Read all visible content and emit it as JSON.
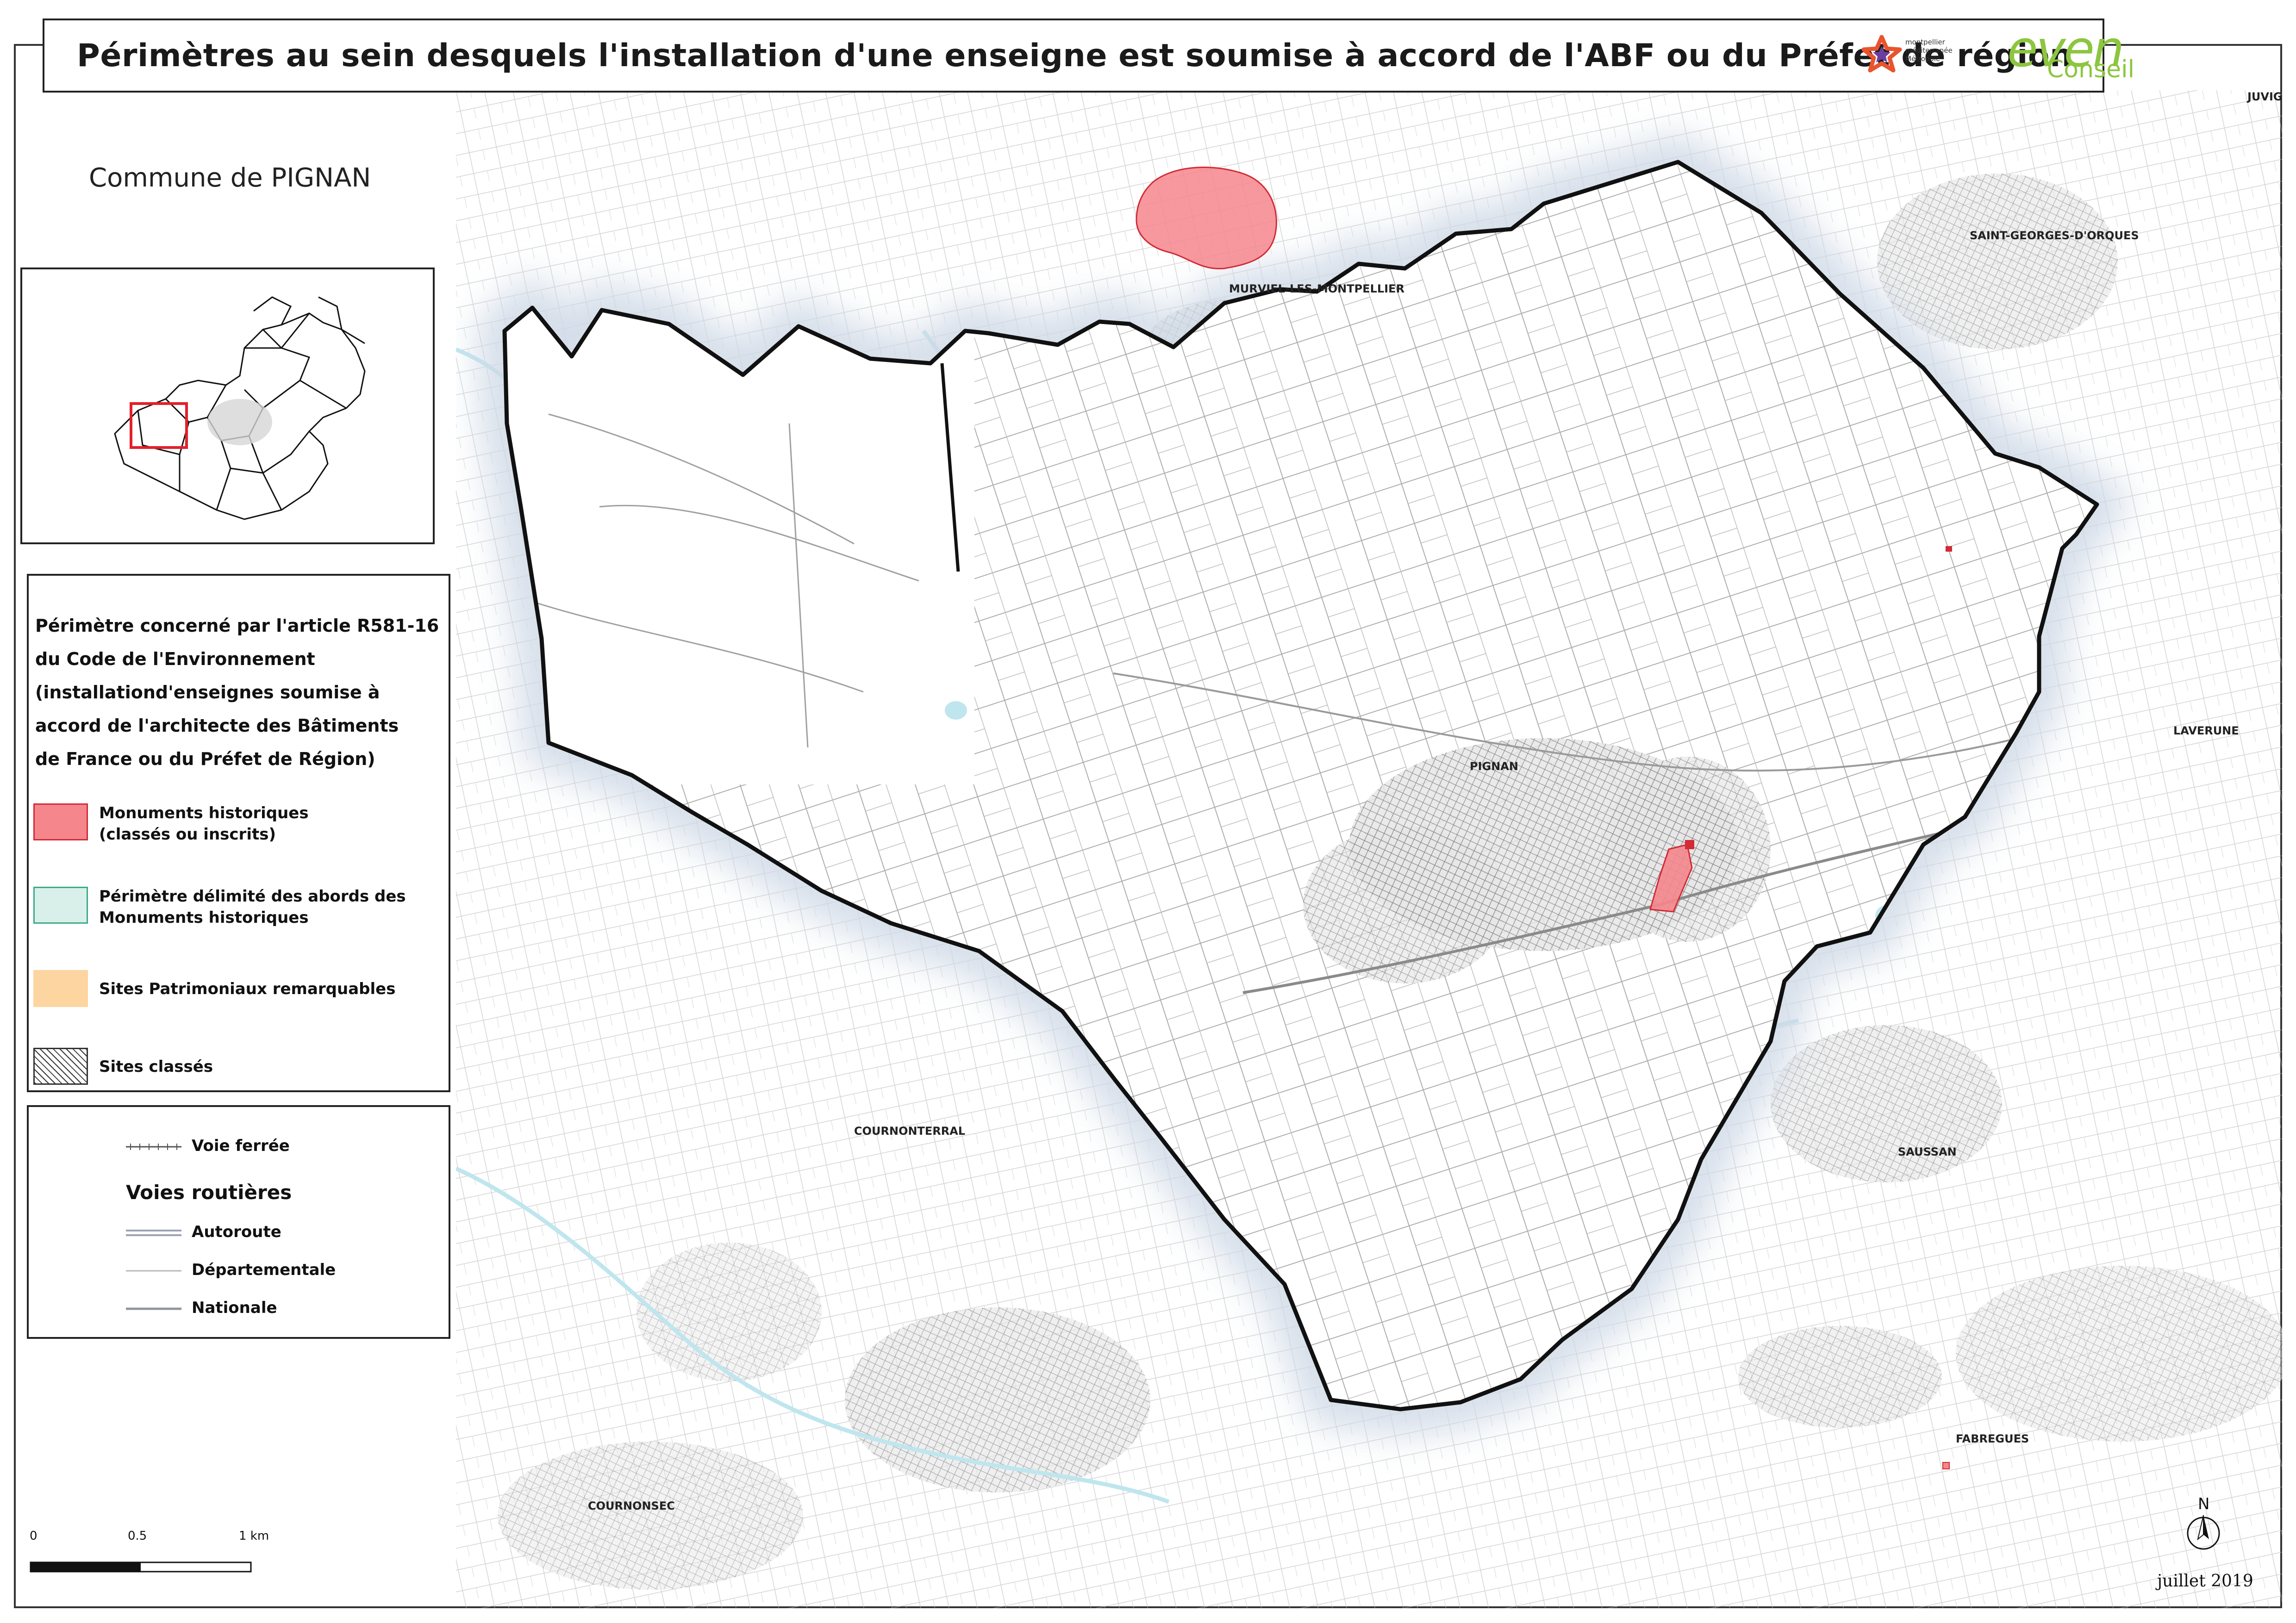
{
  "title": "Périmètres au sein desquels l'installation d'une enseigne est soumise à accord de l'ABF ou du Préfet de région",
  "logos": {
    "montpellier_line1": "montpellier",
    "montpellier_line2": "méditerranée",
    "montpellier_line3": "Métropole",
    "even_word": "even",
    "even_sub": "Conseil"
  },
  "commune_label": "Commune de PIGNAN",
  "legend": {
    "heading_lines": [
      "Périmètre concerné par l'article R581-16",
      "du Code de l'Environnement",
      "(installationd'enseignes soumise à",
      "accord de l'architecte des Bâtiments",
      "de France ou du Préfet de Région)"
    ],
    "items": [
      {
        "line1": "Monuments historiques",
        "line2": "(classés ou inscrits)",
        "color": "#f4868c",
        "border": "#d22b36"
      },
      {
        "line1": "Périmètre délimité des abords des",
        "line2": "Monuments historiques",
        "color": "#d9f0ea",
        "border": "#3daa86"
      },
      {
        "line1": "Sites Patrimoniaux remarquables",
        "line2": "",
        "color": "#fdd5a0",
        "border": "#fdd5a0"
      },
      {
        "line1": "Sites classés",
        "line2": "",
        "color": "hatched",
        "border": "#333333"
      }
    ]
  },
  "legend2": {
    "railway": "Voie ferrée",
    "roads_heading": "Voies routières",
    "autoroute": "Autoroute",
    "departementale": "Départementale",
    "nationale": "Nationale"
  },
  "places": {
    "murviel": "MURVIEL-LES-MONTPELLIER",
    "saint_georges": "SAINT-GEORGES-D'ORQUES",
    "juvignac": "JUVIG",
    "pignan": "PIGNAN",
    "laverune": "LAVERUNE",
    "cournonterral": "COURNONTERRAL",
    "saussan": "SAUSSAN",
    "fabregues": "FABREGUES",
    "cournonsec": "COURNONSEC"
  },
  "scale": {
    "tick0": "0",
    "tick1": "0.5",
    "tick2": "1 km"
  },
  "north_label": "N",
  "date": "juillet 2019",
  "colors": {
    "monument_fill": "#f4868c",
    "monument_stroke": "#d22b36",
    "boundary": "#111111",
    "parcel": "#9a9a9a",
    "water": "#bfe6ee",
    "halo": "#cfd9e6",
    "even_green": "#8cc63f"
  }
}
